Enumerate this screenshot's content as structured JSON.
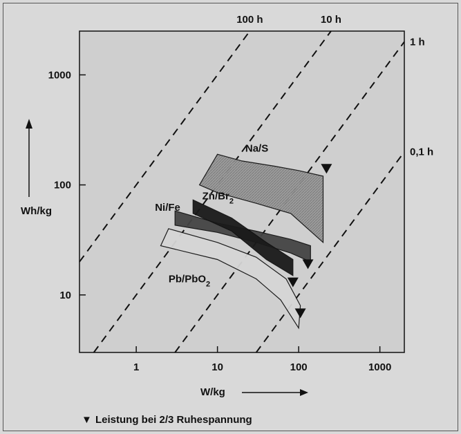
{
  "chart_data": {
    "type": "area",
    "title": "",
    "xlabel": "W/kg",
    "ylabel": "Wh/kg",
    "xscale": "log",
    "yscale": "log",
    "xlim": [
      0.2,
      2000
    ],
    "ylim": [
      3,
      2500
    ],
    "grid": false,
    "x_ticks": [
      {
        "value": 1,
        "label": "1"
      },
      {
        "value": 10,
        "label": "10"
      },
      {
        "value": 100,
        "label": "100"
      },
      {
        "value": 1000,
        "label": "1000"
      }
    ],
    "y_ticks": [
      {
        "value": 10,
        "label": "10"
      },
      {
        "value": 100,
        "label": "100"
      },
      {
        "value": 1000,
        "label": "1000"
      }
    ],
    "time_lines": [
      {
        "hours": 100,
        "label": "100 h"
      },
      {
        "hours": 10,
        "label": "10 h"
      },
      {
        "hours": 1,
        "label": "1 h"
      },
      {
        "hours": 0.1,
        "label": "0,1 h"
      }
    ],
    "series": [
      {
        "name": "Na/S",
        "color": "#8f8f8f",
        "upper": [
          [
            10,
            190
          ],
          [
            20,
            165
          ],
          [
            50,
            148
          ],
          [
            100,
            135
          ],
          [
            200,
            120
          ]
        ],
        "lower": [
          [
            6,
            100
          ],
          [
            10,
            85
          ],
          [
            30,
            68
          ],
          [
            80,
            55
          ],
          [
            200,
            30
          ]
        ],
        "marker": [
          220,
          140
        ]
      },
      {
        "name": "Zn/Br2",
        "color": "#444444",
        "upper": [
          [
            3,
            58
          ],
          [
            10,
            45
          ],
          [
            30,
            38
          ],
          [
            80,
            32
          ],
          [
            140,
            28
          ]
        ],
        "lower": [
          [
            3,
            43
          ],
          [
            10,
            37
          ],
          [
            30,
            30
          ],
          [
            80,
            24
          ],
          [
            140,
            20
          ]
        ],
        "marker": [
          130,
          19
        ]
      },
      {
        "name": "Ni/Fe",
        "color": "#1a1a1a",
        "upper": [
          [
            5,
            73
          ],
          [
            15,
            50
          ],
          [
            40,
            30
          ],
          [
            85,
            21
          ]
        ],
        "lower": [
          [
            5,
            55
          ],
          [
            15,
            38
          ],
          [
            40,
            21
          ],
          [
            85,
            15
          ]
        ],
        "marker": [
          85,
          13
        ]
      },
      {
        "name": "Pb/PbO2",
        "color": "#d6d6d6",
        "upper": [
          [
            2.5,
            40
          ],
          [
            10,
            30
          ],
          [
            30,
            22
          ],
          [
            70,
            14
          ],
          [
            105,
            8
          ]
        ],
        "lower": [
          [
            2,
            28
          ],
          [
            10,
            21
          ],
          [
            30,
            14
          ],
          [
            60,
            9
          ],
          [
            100,
            5
          ]
        ],
        "marker": [
          105,
          6.8
        ]
      }
    ],
    "legend_note": {
      "symbol": "▼",
      "text": "Leistung bei 2/3 Ruhespannung"
    }
  }
}
